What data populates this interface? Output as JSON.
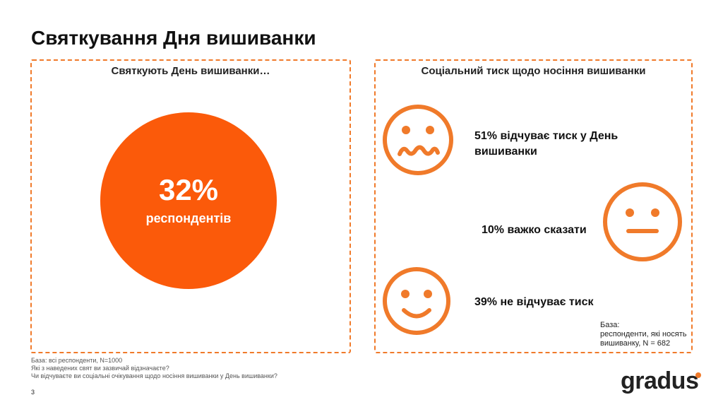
{
  "title": "Святкування Дня вишиванки",
  "left_panel": {
    "heading": "Святкують День вишиванки…",
    "percent": "32%",
    "label": "респондентів"
  },
  "right_panel": {
    "heading": "Соціальний тиск щодо носіння вишиванки",
    "stats": [
      {
        "line1": "51% відчуває тиск у День",
        "line2": "вишиванки",
        "icon": "sad-face-icon"
      },
      {
        "text": "10% важко сказати",
        "icon": "neutral-face-icon"
      },
      {
        "text": "39% не відчуває тиск",
        "icon": "happy-face-icon"
      }
    ],
    "base": {
      "line1": "База:",
      "line2": "респонденти, які носять",
      "line3": "вишиванку, N = 682"
    }
  },
  "footnotes": {
    "line1": "База: всі респонденти, N=1000",
    "line2": "Які з наведених свят ви зазвичай відзначаєте?",
    "line3": "Чи відчуваєте ви соціальні очікування щодо носіння вишиванки у День вишиванки?"
  },
  "page_number": "3",
  "logo": "gradus",
  "colors": {
    "accent": "#fb5a0a",
    "dashed_border": "#f07a2a"
  }
}
